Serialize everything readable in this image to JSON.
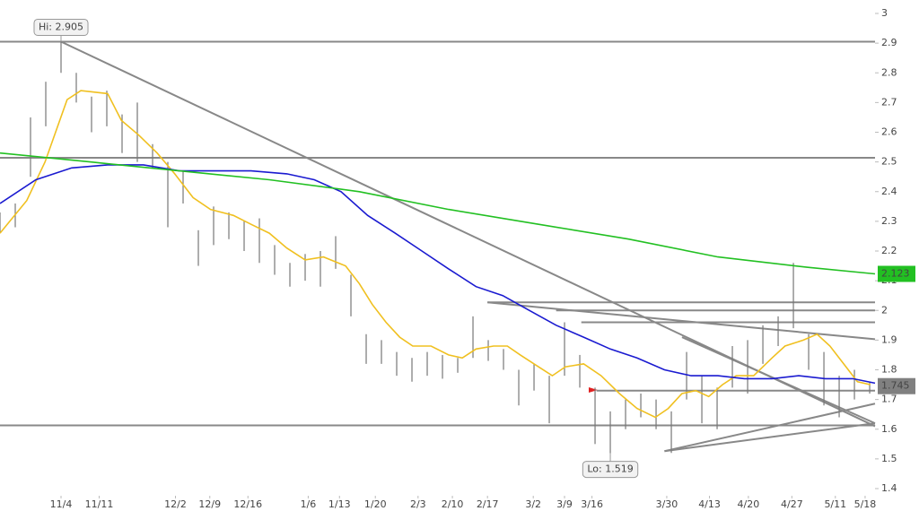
{
  "chart_data": {
    "type": "ohlc",
    "xlim": [
      -8,
      106.7
    ],
    "ylim": [
      1.4,
      3.0
    ],
    "xticks": [
      {
        "value": 0,
        "label": "11/4"
      },
      {
        "value": 5,
        "label": "11/11"
      },
      {
        "value": 15,
        "label": "12/2"
      },
      {
        "value": 19.5,
        "label": "12/9"
      },
      {
        "value": 24.5,
        "label": "12/16"
      },
      {
        "value": 32.4,
        "label": "1/6"
      },
      {
        "value": 36.5,
        "label": "1/13"
      },
      {
        "value": 41.2,
        "label": "1/20"
      },
      {
        "value": 46.8,
        "label": "2/3"
      },
      {
        "value": 51.3,
        "label": "2/10"
      },
      {
        "value": 55.9,
        "label": "2/17"
      },
      {
        "value": 61.9,
        "label": "3/2"
      },
      {
        "value": 66,
        "label": "3/9"
      },
      {
        "value": 69.6,
        "label": "3/16"
      },
      {
        "value": 79.4,
        "label": "3/30"
      },
      {
        "value": 85,
        "label": "4/13"
      },
      {
        "value": 90.1,
        "label": "4/20"
      },
      {
        "value": 95.8,
        "label": "4/27"
      },
      {
        "value": 101.5,
        "label": "5/11"
      },
      {
        "value": 105.4,
        "label": "5/18"
      }
    ],
    "yticks": [
      1.4,
      1.5,
      1.6,
      1.7,
      1.8,
      1.9,
      2,
      2.1,
      2.2,
      2.3,
      2.4,
      2.5,
      2.6,
      2.7,
      2.8,
      2.9,
      3
    ],
    "bars": {
      "color": "#777777",
      "x": [
        -8,
        -6,
        -4,
        -2,
        0,
        2,
        4,
        6,
        8,
        10,
        12,
        14,
        16,
        18,
        20,
        22,
        24,
        26,
        28,
        30,
        32,
        34,
        36,
        38,
        40,
        42,
        44,
        46,
        48,
        50,
        52,
        54,
        56,
        58,
        60,
        62,
        64,
        66,
        68,
        70,
        72,
        74,
        76,
        78,
        80,
        82,
        84,
        86,
        88,
        90,
        92,
        94,
        96,
        98,
        100,
        102,
        104,
        106
      ],
      "high": [
        2.33,
        2.36,
        2.65,
        2.77,
        2.905,
        2.8,
        2.72,
        2.74,
        2.66,
        2.7,
        2.56,
        2.5,
        2.47,
        2.27,
        2.35,
        2.33,
        2.3,
        2.31,
        2.22,
        2.16,
        2.19,
        2.2,
        2.25,
        2.12,
        1.92,
        1.9,
        1.86,
        1.84,
        1.86,
        1.85,
        1.84,
        1.98,
        1.9,
        1.87,
        1.8,
        1.82,
        1.78,
        1.96,
        1.85,
        1.74,
        1.66,
        1.7,
        1.72,
        1.7,
        1.66,
        1.86,
        1.78,
        1.74,
        1.88,
        1.9,
        1.95,
        1.98,
        2.16,
        1.92,
        1.86,
        1.78,
        1.8,
        1.76
      ],
      "low": [
        2.26,
        2.28,
        2.45,
        2.62,
        2.8,
        2.7,
        2.6,
        2.62,
        2.53,
        2.5,
        2.48,
        2.28,
        2.36,
        2.15,
        2.22,
        2.24,
        2.2,
        2.16,
        2.12,
        2.08,
        2.1,
        2.08,
        2.14,
        1.98,
        1.82,
        1.82,
        1.78,
        1.76,
        1.78,
        1.77,
        1.79,
        1.84,
        1.83,
        1.8,
        1.68,
        1.73,
        1.62,
        1.78,
        1.74,
        1.55,
        1.519,
        1.6,
        1.64,
        1.6,
        1.52,
        1.7,
        1.62,
        1.6,
        1.74,
        1.72,
        1.82,
        1.88,
        1.94,
        1.8,
        1.68,
        1.64,
        1.7,
        1.72
      ]
    },
    "series": [
      {
        "color": "#f0c020",
        "x": [
          -8,
          -4.5,
          -2.1,
          0.8,
          2.6,
          6.1,
          7.9,
          10.2,
          12.6,
          14.9,
          17.3,
          19.6,
          22.6,
          24.9,
          27.3,
          29.6,
          32,
          34.4,
          37.3,
          39.1,
          40.8,
          42.6,
          44.4,
          46.1,
          48.5,
          50.8,
          52.6,
          54.4,
          56.7,
          58.5,
          60.2,
          62.6,
          64.4,
          66.1,
          68.5,
          70.8,
          73.2,
          75.5,
          77.9,
          79.6,
          81.4,
          83.2,
          84.9,
          86.7,
          88.5,
          90.8,
          93.2,
          94.9,
          97.3,
          99.1,
          100.8,
          102.6,
          104.4,
          106.1
        ],
        "values": [
          2.26,
          2.37,
          2.5,
          2.71,
          2.74,
          2.73,
          2.64,
          2.59,
          2.53,
          2.46,
          2.38,
          2.34,
          2.32,
          2.29,
          2.26,
          2.21,
          2.17,
          2.18,
          2.15,
          2.09,
          2.02,
          1.96,
          1.91,
          1.88,
          1.88,
          1.85,
          1.84,
          1.87,
          1.88,
          1.88,
          1.85,
          1.81,
          1.78,
          1.81,
          1.82,
          1.78,
          1.72,
          1.67,
          1.64,
          1.67,
          1.72,
          1.73,
          1.71,
          1.75,
          1.78,
          1.78,
          1.84,
          1.88,
          1.9,
          1.92,
          1.88,
          1.82,
          1.76,
          1.75
        ]
      },
      {
        "color": "#1a1ad0",
        "x": [
          -8,
          -3.3,
          1.4,
          6.1,
          10.8,
          15.5,
          20.2,
          24.9,
          29.6,
          33.2,
          36.7,
          40.2,
          43.8,
          47.3,
          50.8,
          54.4,
          57.9,
          61.4,
          64.9,
          68.5,
          72,
          75.5,
          79.1,
          82.6,
          86.1,
          89.6,
          93.2,
          96.7,
          100.2,
          103.8,
          106.7
        ],
        "values": [
          2.36,
          2.44,
          2.48,
          2.49,
          2.49,
          2.47,
          2.47,
          2.47,
          2.46,
          2.44,
          2.4,
          2.32,
          2.26,
          2.2,
          2.14,
          2.08,
          2.05,
          2,
          1.95,
          1.91,
          1.87,
          1.84,
          1.8,
          1.78,
          1.78,
          1.77,
          1.77,
          1.78,
          1.77,
          1.77,
          1.755
        ]
      },
      {
        "color": "#22c022",
        "x": [
          -8,
          3.8,
          15.5,
          27.3,
          39.1,
          50.8,
          62.6,
          74.4,
          86.1,
          97.9,
          106.7
        ],
        "values": [
          2.53,
          2.5,
          2.47,
          2.44,
          2.4,
          2.34,
          2.29,
          2.24,
          2.18,
          2.145,
          2.123
        ]
      }
    ],
    "lines": [
      {
        "x": [
          -8,
          106.7
        ],
        "y": [
          2.905,
          2.905
        ]
      },
      {
        "x": [
          -8,
          106.7
        ],
        "y": [
          2.514,
          2.514
        ]
      },
      {
        "x": [
          -8,
          106.7
        ],
        "y": [
          1.613,
          1.613
        ]
      },
      {
        "x": [
          0,
          106.7
        ],
        "y": [
          2.905,
          1.61
        ]
      },
      {
        "x": [
          55.9,
          106.7
        ],
        "y": [
          2.027,
          1.903
        ]
      },
      {
        "x": [
          55.9,
          106.7
        ],
        "y": [
          2.027,
          2.027
        ]
      },
      {
        "x": [
          64.9,
          106.7
        ],
        "y": [
          2.0,
          2.0
        ]
      },
      {
        "x": [
          68.2,
          106.7
        ],
        "y": [
          1.96,
          1.96
        ]
      },
      {
        "x": [
          70.2,
          106.7
        ],
        "y": [
          1.73,
          1.73
        ]
      },
      {
        "x": [
          79.1,
          106.7
        ],
        "y": [
          1.526,
          1.686
        ]
      },
      {
        "x": [
          79.1,
          106.7
        ],
        "y": [
          1.526,
          1.62
        ]
      },
      {
        "x": [
          81.4,
          106.7
        ],
        "y": [
          1.91,
          1.62
        ]
      }
    ],
    "annotations": [
      {
        "text": "Hi: 2.905",
        "x": 0,
        "y": 2.905,
        "side": "above"
      },
      {
        "text": "Lo: 1.519",
        "x": 72,
        "y": 1.519,
        "side": "below"
      }
    ],
    "price_tags": [
      {
        "value": 2.123,
        "color": "#22c022"
      },
      {
        "value": 1.745,
        "color": "#808080"
      }
    ]
  }
}
